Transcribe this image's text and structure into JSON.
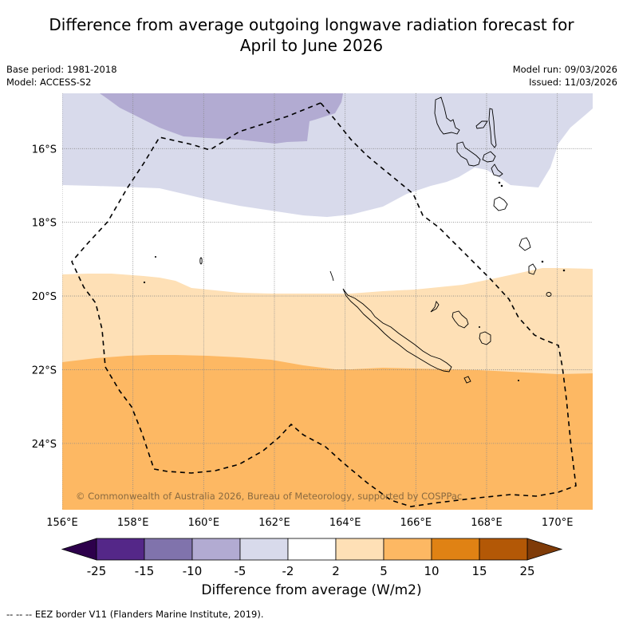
{
  "title_line1": "Difference from average outgoing longwave radiation forecast for",
  "title_line2": "April to June 2026",
  "meta_left": {
    "base_period": "Base period: 1981-2018",
    "model": "Model: ACCESS-S2"
  },
  "meta_right": {
    "model_run": "Model run: 09/03/2026",
    "issued": "Issued: 11/03/2026"
  },
  "map": {
    "lon_range": [
      156,
      171
    ],
    "lat_range": [
      -14.5,
      -25.8
    ],
    "lon_ticks": [
      156,
      158,
      160,
      162,
      164,
      166,
      168,
      170
    ],
    "lon_tick_labels": [
      "156°E",
      "158°E",
      "160°E",
      "162°E",
      "164°E",
      "166°E",
      "168°E",
      "170°E"
    ],
    "lat_ticks": [
      -16,
      -18,
      -20,
      -22,
      -24
    ],
    "lat_tick_labels": [
      "16°S",
      "18°S",
      "20°S",
      "22°S",
      "24°S"
    ],
    "copyright": "© Commonwealth of Australia 2026, Bureau of Meteorology, supported by COSPPac",
    "bands": [
      {
        "name": "-10 to -5",
        "color": "#b2abd2"
      },
      {
        "name": "-5 to -2",
        "color": "#d8daeb"
      },
      {
        "name": "-2 to 2",
        "color": "#ffffff"
      },
      {
        "name": "2 to 5",
        "color": "#fee0b6"
      },
      {
        "name": "5 to 10",
        "color": "#fdb863"
      }
    ]
  },
  "colorbar": {
    "boundaries": [
      "-25",
      "-15",
      "-10",
      "-5",
      "-2",
      "2",
      "5",
      "10",
      "15",
      "25"
    ],
    "colors": [
      "#542788",
      "#8073ac",
      "#b2abd2",
      "#d8daeb",
      "#ffffff",
      "#fee0b6",
      "#fdb863",
      "#e08214",
      "#b35806"
    ],
    "under_color": "#2d004b",
    "over_color": "#7f3b08",
    "label": "Difference from average (W/m2)"
  },
  "footnote": "--  --  -- EEZ border V11 (Flanders Marine Institute, 2019)."
}
